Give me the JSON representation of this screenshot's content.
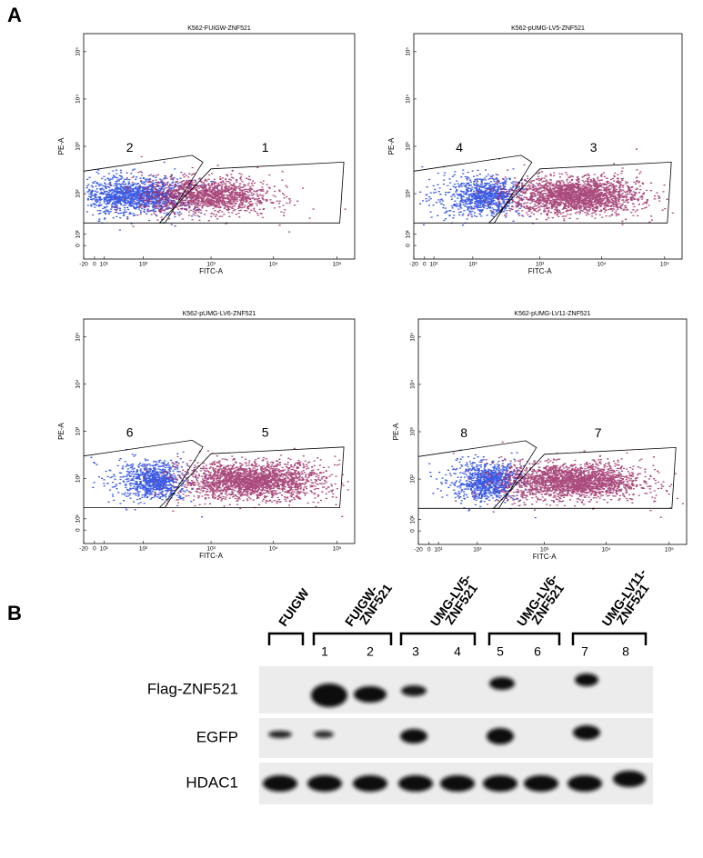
{
  "panel_a": {
    "label": "A",
    "x_label": "FITC-A",
    "y_label": "PE-A",
    "x_ticks": [
      "-20",
      "0",
      "10¹",
      "10²",
      "10³",
      "10⁴",
      "10⁵"
    ],
    "y_ticks": [
      "0",
      "10¹",
      "10²",
      "10³",
      "10⁴",
      "10⁵"
    ],
    "plots": [
      {
        "title": "K562-FUIGW-ZNF521",
        "gate_labels": [
          "2",
          "1"
        ]
      },
      {
        "title": "K562-pUMG-LV5-ZNF521",
        "gate_labels": [
          "4",
          "3"
        ]
      },
      {
        "title": "K562-pUMG-LV6-ZNF521",
        "gate_labels": [
          "6",
          "5"
        ]
      },
      {
        "title": "K562-pUMG-LV11-ZNF521",
        "gate_labels": [
          "8",
          "7"
        ]
      }
    ]
  },
  "panel_b": {
    "label": "B",
    "groups": [
      [
        "FUIGW"
      ],
      [
        "FUIGW-",
        "ZNF521"
      ],
      [
        "UMG-LV5-",
        "ZNF521"
      ],
      [
        "UMG-LV6-",
        "ZNF521"
      ],
      [
        "UMG-LV11-",
        "ZNF521"
      ]
    ],
    "lanes": [
      "1",
      "2",
      "3",
      "4",
      "5",
      "6",
      "7",
      "8"
    ],
    "rows": [
      "Flag-ZNF521",
      "EGFP",
      "HDAC1"
    ]
  }
}
